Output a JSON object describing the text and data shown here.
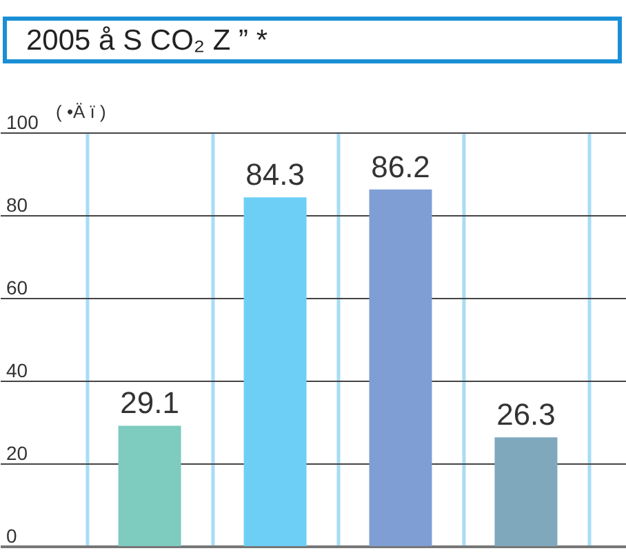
{
  "chart_data": {
    "type": "bar",
    "title": "2005 å S CO₂ Z ” *",
    "ylabel": "( •Ä ï )",
    "categories": [
      null,
      null,
      null,
      null
    ],
    "values": [
      29.1,
      84.3,
      86.2,
      26.3
    ],
    "colors": [
      "#7ecbbf",
      "#6dcff6",
      "#7f9fd4",
      "#7fa8bd"
    ],
    "ylim": [
      0,
      100
    ],
    "yticks": [
      0,
      20,
      40,
      60,
      80,
      100
    ],
    "grid": true,
    "data_labels": true
  }
}
